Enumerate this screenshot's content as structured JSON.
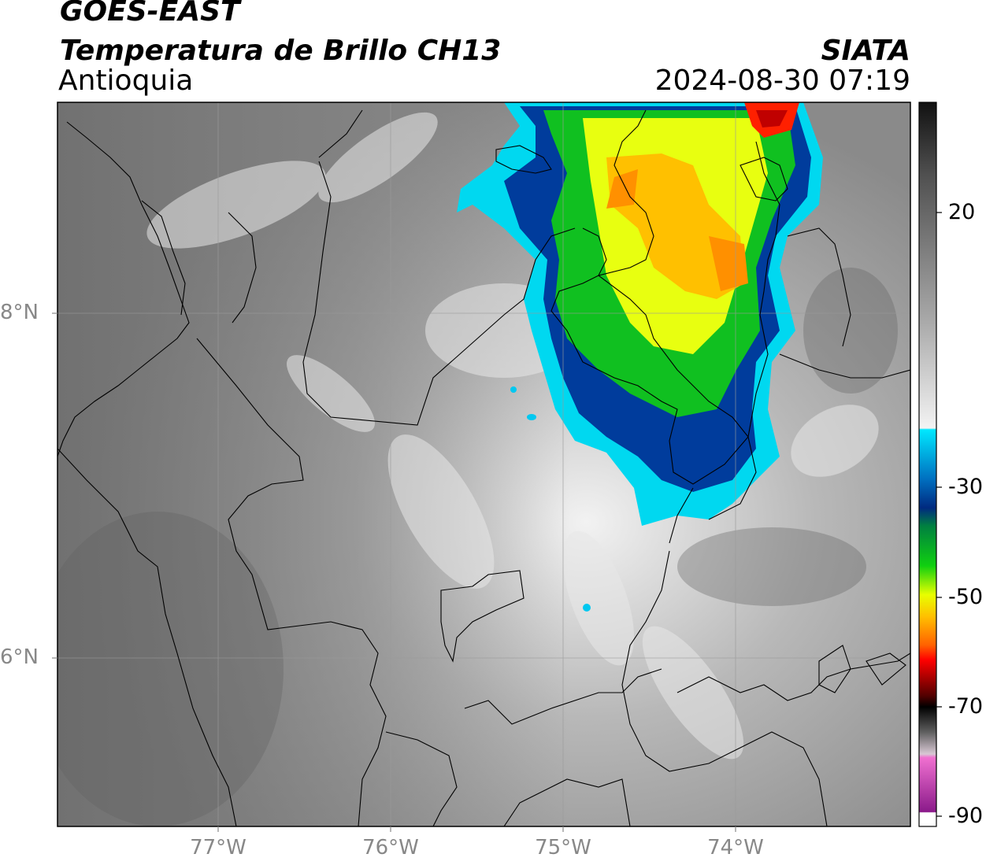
{
  "header": {
    "satellite": "GOES-EAST",
    "product": "Temperatura de Brillo CH13",
    "region": "Antioquia",
    "brand": "SIATA",
    "datetime": "2024-08-30 07:19"
  },
  "axes": {
    "lat_labels": [
      "8°N",
      "6°N"
    ],
    "lon_labels": [
      "77°W",
      "76°W",
      "75°W",
      "74°W"
    ]
  },
  "colorbar": {
    "labels": [
      "20",
      "-30",
      "-50",
      "-70",
      "-90"
    ],
    "colors": [
      "#1a1a1a",
      "#7f7f7f",
      "#efefef",
      "#00e0ff",
      "#003a9a",
      "#00b000",
      "#e6ff00",
      "#ffb000",
      "#ff2000",
      "#6a0000",
      "#000000",
      "#d9c6d4",
      "#e86cc9",
      "#9b1a9b",
      "#ffffff"
    ]
  }
}
